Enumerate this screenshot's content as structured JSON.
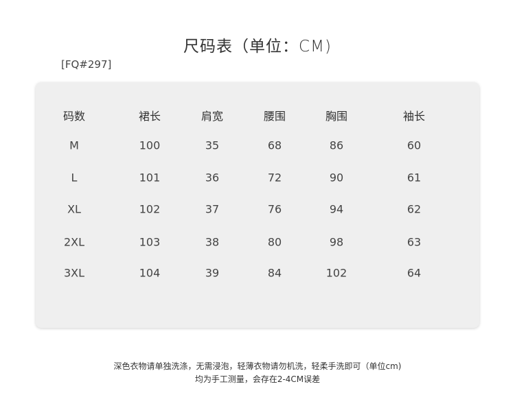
{
  "title": "尺码表（单位：CM)",
  "product_code": "[FQ#297]",
  "table": {
    "headers": [
      "码数",
      "裙长",
      "肩宽",
      "腰围",
      "胸围",
      "袖长"
    ],
    "rows": [
      [
        "M",
        "100",
        "35",
        "68",
        "86",
        "60"
      ],
      [
        "L",
        "101",
        "36",
        "72",
        "90",
        "61"
      ],
      [
        "XL",
        "102",
        "37",
        "76",
        "94",
        "62"
      ],
      [
        "2XL",
        "103",
        "38",
        "80",
        "98",
        "63"
      ],
      [
        "3XL",
        "104",
        "39",
        "84",
        "102",
        "64"
      ]
    ]
  },
  "notes": [
    "深色衣物请单独洗涤，无需浸泡，轻薄衣物请勿机洗，轻柔手洗即可（单位cm)",
    "均为手工测量，会存在2-4CM误差"
  ]
}
